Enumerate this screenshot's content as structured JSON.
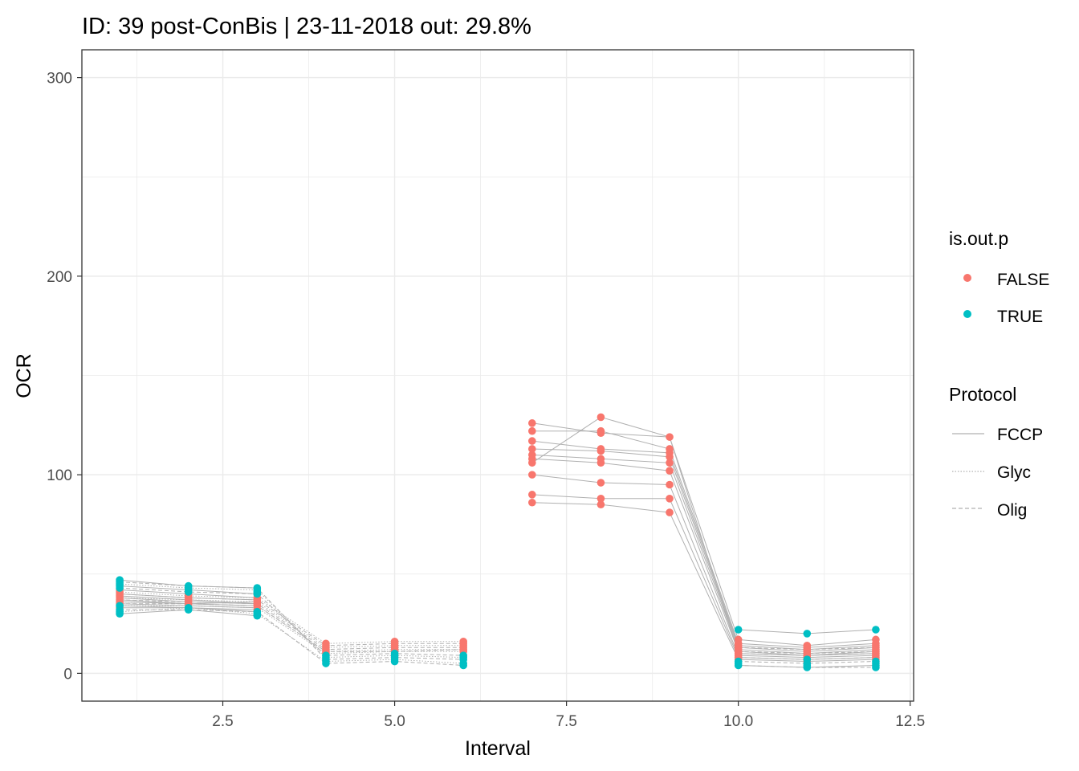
{
  "chart_data": {
    "type": "line",
    "title": "ID: 39 post-ConBis  | 23-11-2018  out: 29.8%",
    "xlabel": "Interval",
    "ylabel": "OCR",
    "xlim": [
      0.45,
      12.55
    ],
    "ylim": [
      -14,
      314
    ],
    "x_ticks": [
      2.5,
      5.0,
      7.5,
      10.0,
      12.5
    ],
    "x_tick_labels": [
      "2.5",
      "5.0",
      "7.5",
      "10.0",
      "12.5"
    ],
    "y_ticks": [
      0,
      100,
      200,
      300
    ],
    "y_tick_labels": [
      "0",
      "100",
      "200",
      "300"
    ],
    "grid": true,
    "legend_position": "right",
    "colors": {
      "false_point": "#F8766D",
      "true_point": "#00BFC4",
      "line": "#b0b0b0",
      "grid": "#ebebeb",
      "axis_text": "#4d4d4d"
    },
    "legend_color": {
      "title": "is.out.p",
      "entries": [
        {
          "label": "FALSE",
          "color": "#F8766D"
        },
        {
          "label": "TRUE",
          "color": "#00BFC4"
        }
      ]
    },
    "legend_linetype": {
      "title": "Protocol",
      "entries": [
        {
          "label": "FCCP",
          "dash": "solid"
        },
        {
          "label": "Glyc",
          "dash": "dotted"
        },
        {
          "label": "Olig",
          "dash": "dashed"
        }
      ]
    },
    "x": [
      1,
      2,
      3,
      4,
      5,
      6,
      7,
      8,
      9,
      10,
      11,
      12
    ],
    "series": [
      {
        "protocol": "FCCP",
        "values": [
          36,
          35,
          34,
          null,
          null,
          null,
          126,
          121,
          119,
          17,
          14,
          17
        ]
      },
      {
        "protocol": "FCCP",
        "values": [
          38,
          36,
          35,
          null,
          null,
          null,
          122,
          122,
          113,
          15,
          13,
          15
        ]
      },
      {
        "protocol": "FCCP",
        "values": [
          40,
          38,
          37,
          null,
          null,
          null,
          117,
          113,
          111,
          14,
          12,
          14
        ]
      },
      {
        "protocol": "FCCP",
        "values": [
          42,
          40,
          38,
          null,
          null,
          null,
          113,
          112,
          109,
          13,
          11,
          13
        ]
      },
      {
        "protocol": "FCCP",
        "values": [
          44,
          42,
          40,
          null,
          null,
          null,
          110,
          108,
          106,
          12,
          10,
          12
        ]
      },
      {
        "protocol": "FCCP",
        "values": [
          37,
          35,
          36,
          null,
          null,
          null,
          108,
          106,
          102,
          11,
          9,
          11
        ]
      },
      {
        "protocol": "FCCP",
        "values": [
          39,
          37,
          35,
          null,
          null,
          null,
          106,
          129,
          119,
          10,
          9,
          10
        ]
      },
      {
        "protocol": "FCCP",
        "values": [
          35,
          34,
          33,
          null,
          null,
          null,
          100,
          96,
          95,
          9,
          8,
          9
        ]
      },
      {
        "protocol": "FCCP",
        "values": [
          33,
          33,
          32,
          null,
          null,
          null,
          90,
          88,
          88,
          8,
          7,
          8
        ]
      },
      {
        "protocol": "FCCP",
        "values": [
          34,
          33,
          31,
          null,
          null,
          null,
          86,
          85,
          81,
          7,
          6,
          7
        ]
      },
      {
        "protocol": "FCCP",
        "values": [
          47,
          44,
          43,
          null,
          null,
          null,
          null,
          null,
          null,
          22,
          20,
          22
        ]
      },
      {
        "protocol": "FCCP",
        "values": [
          30,
          32,
          29,
          null,
          null,
          null,
          null,
          null,
          null,
          4,
          3,
          4
        ]
      },
      {
        "protocol": "Glyc",
        "values": [
          41,
          39,
          38,
          15,
          16,
          16,
          null,
          null,
          null,
          null,
          null,
          null
        ]
      },
      {
        "protocol": "Glyc",
        "values": [
          38,
          37,
          36,
          13,
          14,
          14,
          null,
          null,
          null,
          null,
          null,
          null
        ]
      },
      {
        "protocol": "Glyc",
        "values": [
          36,
          35,
          34,
          11,
          12,
          12,
          null,
          null,
          null,
          null,
          null,
          null
        ]
      },
      {
        "protocol": "Glyc",
        "values": [
          34,
          34,
          33,
          10,
          11,
          11,
          null,
          null,
          null,
          null,
          null,
          null
        ]
      },
      {
        "protocol": "Glyc",
        "values": [
          45,
          43,
          42,
          8,
          9,
          8,
          null,
          null,
          null,
          null,
          null,
          null
        ]
      },
      {
        "protocol": "Glyc",
        "values": [
          31,
          33,
          30,
          6,
          7,
          5,
          null,
          null,
          null,
          null,
          null,
          null
        ]
      },
      {
        "protocol": "Olig",
        "values": [
          40,
          38,
          37,
          14,
          15,
          15,
          null,
          null,
          null,
          13,
          12,
          13
        ]
      },
      {
        "protocol": "Olig",
        "values": [
          37,
          36,
          35,
          12,
          13,
          13,
          null,
          null,
          null,
          11,
          10,
          11
        ]
      },
      {
        "protocol": "Olig",
        "values": [
          35,
          35,
          34,
          11,
          11,
          12,
          null,
          null,
          null,
          10,
          9,
          10
        ]
      },
      {
        "protocol": "Olig",
        "values": [
          43,
          41,
          40,
          9,
          10,
          9,
          null,
          null,
          null,
          8,
          7,
          8
        ]
      },
      {
        "protocol": "Olig",
        "values": [
          46,
          44,
          43,
          7,
          8,
          7,
          null,
          null,
          null,
          6,
          5,
          6
        ]
      },
      {
        "protocol": "Olig",
        "values": [
          32,
          32,
          31,
          5,
          6,
          4,
          null,
          null,
          null,
          4,
          3,
          3
        ]
      }
    ],
    "points_false": [
      [
        1,
        33
      ],
      [
        1,
        35
      ],
      [
        1,
        36
      ],
      [
        1,
        37
      ],
      [
        1,
        38
      ],
      [
        1,
        39
      ],
      [
        1,
        40
      ],
      [
        1,
        41
      ],
      [
        1,
        42
      ],
      [
        2,
        33
      ],
      [
        2,
        35
      ],
      [
        2,
        36
      ],
      [
        2,
        37
      ],
      [
        2,
        38
      ],
      [
        2,
        39
      ],
      [
        2,
        40
      ],
      [
        3,
        32
      ],
      [
        3,
        34
      ],
      [
        3,
        35
      ],
      [
        3,
        36
      ],
      [
        3,
        37
      ],
      [
        3,
        38
      ],
      [
        3,
        40
      ],
      [
        4,
        10
      ],
      [
        4,
        11
      ],
      [
        4,
        12
      ],
      [
        4,
        13
      ],
      [
        4,
        14
      ],
      [
        4,
        15
      ],
      [
        5,
        11
      ],
      [
        5,
        12
      ],
      [
        5,
        13
      ],
      [
        5,
        14
      ],
      [
        5,
        15
      ],
      [
        5,
        16
      ],
      [
        6,
        11
      ],
      [
        6,
        12
      ],
      [
        6,
        13
      ],
      [
        6,
        14
      ],
      [
        6,
        15
      ],
      [
        6,
        16
      ],
      [
        7,
        86
      ],
      [
        7,
        90
      ],
      [
        7,
        100
      ],
      [
        7,
        106
      ],
      [
        7,
        108
      ],
      [
        7,
        110
      ],
      [
        7,
        113
      ],
      [
        7,
        117
      ],
      [
        7,
        122
      ],
      [
        7,
        126
      ],
      [
        8,
        85
      ],
      [
        8,
        88
      ],
      [
        8,
        96
      ],
      [
        8,
        106
      ],
      [
        8,
        108
      ],
      [
        8,
        112
      ],
      [
        8,
        113
      ],
      [
        8,
        121
      ],
      [
        8,
        122
      ],
      [
        8,
        129
      ],
      [
        9,
        81
      ],
      [
        9,
        88
      ],
      [
        9,
        95
      ],
      [
        9,
        102
      ],
      [
        9,
        106
      ],
      [
        9,
        109
      ],
      [
        9,
        111
      ],
      [
        9,
        113
      ],
      [
        9,
        119
      ],
      [
        10,
        7
      ],
      [
        10,
        8
      ],
      [
        10,
        9
      ],
      [
        10,
        10
      ],
      [
        10,
        11
      ],
      [
        10,
        12
      ],
      [
        10,
        13
      ],
      [
        10,
        14
      ],
      [
        10,
        15
      ],
      [
        10,
        17
      ],
      [
        11,
        6
      ],
      [
        11,
        7
      ],
      [
        11,
        8
      ],
      [
        11,
        9
      ],
      [
        11,
        10
      ],
      [
        11,
        11
      ],
      [
        11,
        12
      ],
      [
        11,
        13
      ],
      [
        11,
        14
      ],
      [
        12,
        7
      ],
      [
        12,
        8
      ],
      [
        12,
        9
      ],
      [
        12,
        10
      ],
      [
        12,
        11
      ],
      [
        12,
        12
      ],
      [
        12,
        13
      ],
      [
        12,
        14
      ],
      [
        12,
        15
      ],
      [
        12,
        17
      ]
    ],
    "points_true": [
      [
        1,
        30
      ],
      [
        1,
        31
      ],
      [
        1,
        32
      ],
      [
        1,
        34
      ],
      [
        1,
        43
      ],
      [
        1,
        44
      ],
      [
        1,
        45
      ],
      [
        1,
        46
      ],
      [
        1,
        47
      ],
      [
        2,
        32
      ],
      [
        2,
        33
      ],
      [
        2,
        41
      ],
      [
        2,
        42
      ],
      [
        2,
        43
      ],
      [
        2,
        44
      ],
      [
        3,
        29
      ],
      [
        3,
        30
      ],
      [
        3,
        31
      ],
      [
        3,
        40
      ],
      [
        3,
        41
      ],
      [
        3,
        42
      ],
      [
        3,
        43
      ],
      [
        4,
        5
      ],
      [
        4,
        6
      ],
      [
        4,
        7
      ],
      [
        4,
        8
      ],
      [
        4,
        9
      ],
      [
        5,
        6
      ],
      [
        5,
        7
      ],
      [
        5,
        8
      ],
      [
        5,
        9
      ],
      [
        5,
        10
      ],
      [
        6,
        4
      ],
      [
        6,
        5
      ],
      [
        6,
        7
      ],
      [
        6,
        8
      ],
      [
        6,
        9
      ],
      [
        10,
        4
      ],
      [
        10,
        5
      ],
      [
        10,
        6
      ],
      [
        10,
        22
      ],
      [
        11,
        3
      ],
      [
        11,
        4
      ],
      [
        11,
        5
      ],
      [
        11,
        7
      ],
      [
        11,
        20
      ],
      [
        12,
        3
      ],
      [
        12,
        4
      ],
      [
        12,
        5
      ],
      [
        12,
        6
      ],
      [
        12,
        22
      ]
    ]
  }
}
